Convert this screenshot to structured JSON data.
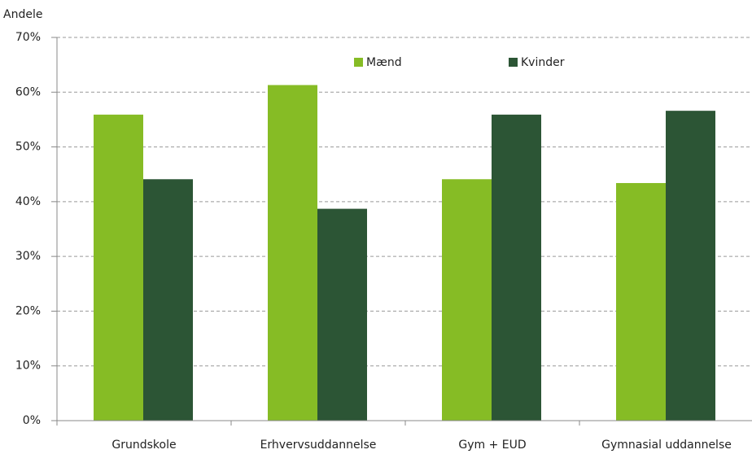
{
  "chart_data": {
    "type": "bar",
    "y_label": "Andele",
    "categories": [
      "Grundskole",
      "Erhvervsuddannelse",
      "Gym + EUD",
      "Gymnasial uddannelse"
    ],
    "series": [
      {
        "name": "Mænd",
        "color": "#86bc25",
        "values": [
          55.9,
          61.3,
          44.1,
          43.4
        ]
      },
      {
        "name": "Kvinder",
        "color": "#2c5535",
        "values": [
          44.1,
          38.7,
          55.9,
          56.6
        ]
      }
    ],
    "ylim": [
      0,
      70
    ],
    "yticks": [
      {
        "value": 0,
        "label": "0%"
      },
      {
        "value": 10,
        "label": "10%"
      },
      {
        "value": 20,
        "label": "20%"
      },
      {
        "value": 30,
        "label": "30%"
      },
      {
        "value": 40,
        "label": "40%"
      },
      {
        "value": 50,
        "label": "50%"
      },
      {
        "value": 60,
        "label": "60%"
      },
      {
        "value": 70,
        "label": "70%"
      }
    ],
    "grid": true,
    "legend": "top"
  }
}
